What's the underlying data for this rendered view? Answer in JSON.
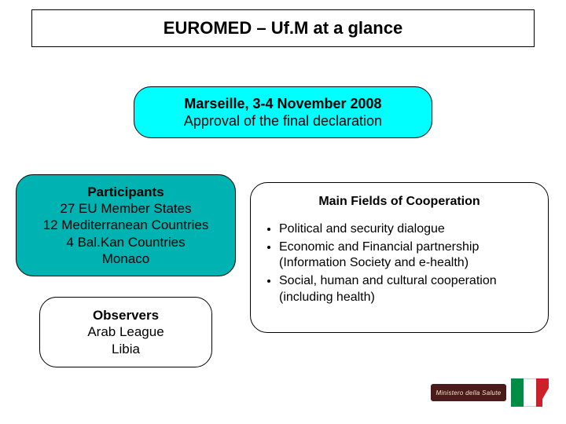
{
  "title": "EUROMED – Uf.M at a glance",
  "marseille": {
    "line1": "Marseille, 3-4 November 2008",
    "line2": "Approval of the final declaration",
    "bg": "#00ffff"
  },
  "participants": {
    "header": "Participants",
    "lines": [
      "27 EU Member States",
      "12 Mediterranean Countries",
      "4 Bal.Kan Countries",
      "Monaco"
    ],
    "bg": "#00b3b3"
  },
  "observers": {
    "header": "Observers",
    "lines": [
      "Arab League",
      "Libia"
    ],
    "bg": "#ffffff"
  },
  "cooperation": {
    "title": "Main Fields of Cooperation",
    "bullets": [
      "Political and security dialogue",
      "Economic and Financial partnership (Information Society and e-health)",
      "Social, human and cultural cooperation (including health)"
    ],
    "bg": "#ffffff"
  },
  "logo": {
    "banner_text": "Ministero della Salute",
    "flag_colors": {
      "green": "#008c45",
      "white": "#ffffff",
      "red": "#cd212a"
    }
  },
  "style": {
    "page_bg": "#ffffff",
    "border_color": "#000000",
    "title_fontsize": 22,
    "body_fontsize": 17,
    "coop_fontsize": 16,
    "border_radius": 22
  }
}
